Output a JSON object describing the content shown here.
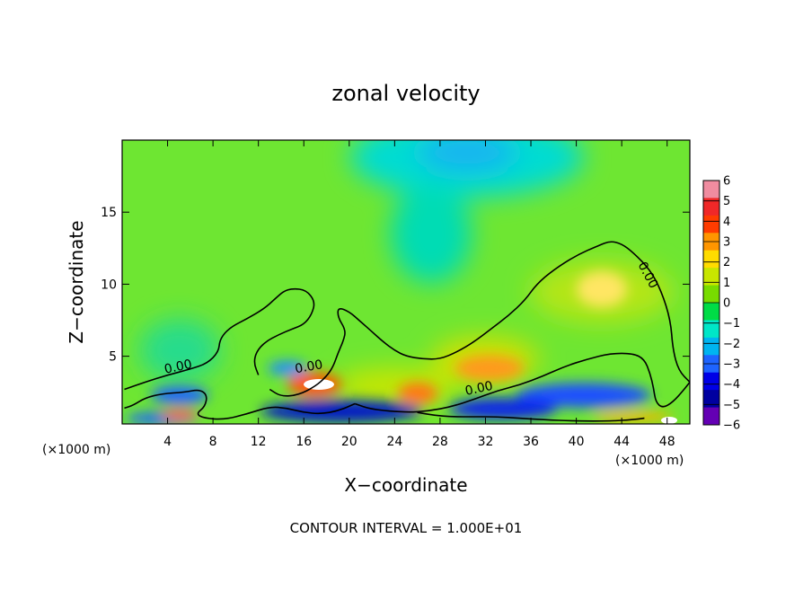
{
  "chart_data": {
    "type": "heatmap",
    "title": "zonal velocity",
    "xlabel": "X−coordinate",
    "ylabel": "Z−coordinate",
    "x_unit_left": "(×1000 m)",
    "x_unit_right": "(×1000 m)",
    "footer": "CONTOUR INTERVAL = 1.000E+01",
    "xlim": [
      0,
      50
    ],
    "ylim": [
      0.3,
      20
    ],
    "x_ticks": [
      4,
      8,
      12,
      16,
      20,
      24,
      28,
      32,
      36,
      40,
      44,
      48
    ],
    "y_ticks": [
      5,
      10,
      15
    ],
    "colorbar": {
      "range": [
        -6,
        6
      ],
      "ticks": [
        6,
        5,
        4,
        3,
        2,
        1,
        0,
        -1,
        -2,
        -3,
        -4,
        -5,
        -6
      ],
      "tick_labels": [
        "6",
        "5",
        "4",
        "3",
        "2",
        "1",
        "0",
        "−1",
        "−2",
        "−3",
        "−4",
        "−5",
        "−6"
      ],
      "colors": [
        "#f08ca0",
        "#f02828",
        "#ff3c00",
        "#ff9600",
        "#ffdc00",
        "#c8e600",
        "#78dc00",
        "#00dc46",
        "#00e6c8",
        "#00b4f0",
        "#1e64ff",
        "#0000e6",
        "#0000a0",
        "#6400b4"
      ]
    },
    "contour_labels": [
      {
        "text": "0.00",
        "x": 5,
        "z": 4
      },
      {
        "text": "0.00",
        "x": 16.5,
        "z": 4
      },
      {
        "text": "0.00",
        "x": 31.5,
        "z": 2.5
      },
      {
        "text": "0.00",
        "x": 46,
        "z": 10.5
      }
    ],
    "zero_contours": [
      {
        "points": [
          [
            0.2,
            2.7
          ],
          [
            2,
            3.2
          ],
          [
            4,
            3.7
          ],
          [
            6,
            4.1
          ],
          [
            7.5,
            4.5
          ],
          [
            8.5,
            5.3
          ],
          [
            8.6,
            6.2
          ],
          [
            9.5,
            7
          ],
          [
            11,
            7.6
          ],
          [
            12.5,
            8.3
          ],
          [
            13.5,
            9
          ],
          [
            14.2,
            9.5
          ],
          [
            15,
            9.7
          ],
          [
            16.2,
            9.6
          ],
          [
            17,
            8.8
          ],
          [
            16.7,
            7.9
          ],
          [
            16,
            7.2
          ],
          [
            15,
            6.9
          ],
          [
            13.8,
            6.5
          ],
          [
            12.6,
            6
          ],
          [
            11.8,
            5.3
          ],
          [
            11.6,
            4.5
          ],
          [
            12,
            3.7
          ]
        ]
      },
      {
        "points": [
          [
            13,
            2.7
          ],
          [
            14,
            2.2
          ],
          [
            15.5,
            2.3
          ],
          [
            17,
            2.9
          ],
          [
            18,
            3.6
          ],
          [
            18.6,
            4.3
          ],
          [
            19,
            5.2
          ],
          [
            19.5,
            6.1
          ],
          [
            19.7,
            6.8
          ],
          [
            19,
            7.7
          ],
          [
            19,
            8.4
          ],
          [
            20,
            8.1
          ],
          [
            21,
            7.4
          ],
          [
            22,
            6.7
          ],
          [
            23,
            6
          ],
          [
            24,
            5.4
          ],
          [
            25,
            5
          ],
          [
            26.5,
            4.8
          ],
          [
            28,
            4.8
          ],
          [
            29.5,
            5.3
          ],
          [
            31,
            6
          ],
          [
            32.5,
            6.9
          ],
          [
            34,
            7.8
          ],
          [
            35.5,
            8.9
          ],
          [
            36.5,
            10
          ],
          [
            38,
            11
          ],
          [
            40,
            12
          ],
          [
            42,
            12.7
          ],
          [
            43,
            13
          ],
          [
            44,
            12.8
          ],
          [
            45,
            12.2
          ],
          [
            46.5,
            11
          ],
          [
            47.5,
            9.5
          ],
          [
            48.3,
            7.5
          ],
          [
            48.5,
            5.5
          ],
          [
            49,
            4
          ],
          [
            50,
            3.2
          ]
        ]
      },
      {
        "points": [
          [
            20.5,
            1.7
          ],
          [
            22,
            1.3
          ],
          [
            25,
            1.1
          ],
          [
            27,
            1.2
          ],
          [
            29,
            1.5
          ],
          [
            31,
            2
          ],
          [
            33,
            2.6
          ],
          [
            35,
            3
          ],
          [
            37,
            3.6
          ],
          [
            39,
            4.3
          ],
          [
            41,
            4.8
          ],
          [
            43,
            5.2
          ],
          [
            45,
            5.2
          ],
          [
            46,
            4.8
          ],
          [
            46.5,
            3.8
          ],
          [
            46.8,
            2.8
          ],
          [
            47,
            1.8
          ],
          [
            47.6,
            1.4
          ],
          [
            48.5,
            1.8
          ],
          [
            49.5,
            2.7
          ],
          [
            50,
            3.2
          ]
        ]
      },
      {
        "points": [
          [
            0.2,
            1.4
          ],
          [
            1,
            1.6
          ],
          [
            2,
            2.1
          ],
          [
            3.5,
            2.4
          ],
          [
            5.5,
            2.5
          ],
          [
            6.8,
            2.7
          ],
          [
            7.5,
            2.3
          ],
          [
            7.3,
            1.5
          ],
          [
            6.5,
            1
          ],
          [
            7.2,
            0.7
          ],
          [
            9,
            0.6
          ],
          [
            11,
            1
          ],
          [
            13,
            1.5
          ],
          [
            14.5,
            1.4
          ],
          [
            16,
            1.1
          ],
          [
            17.5,
            1
          ],
          [
            19,
            1.2
          ],
          [
            20.5,
            1.7
          ]
        ]
      },
      {
        "points": [
          [
            26,
            1.1
          ],
          [
            27.5,
            0.9
          ],
          [
            29,
            0.8
          ],
          [
            31,
            0.8
          ],
          [
            33,
            0.8
          ],
          [
            35,
            0.7
          ],
          [
            37,
            0.6
          ],
          [
            40,
            0.5
          ],
          [
            43,
            0.5
          ],
          [
            45,
            0.6
          ],
          [
            46,
            0.7
          ]
        ]
      }
    ]
  }
}
